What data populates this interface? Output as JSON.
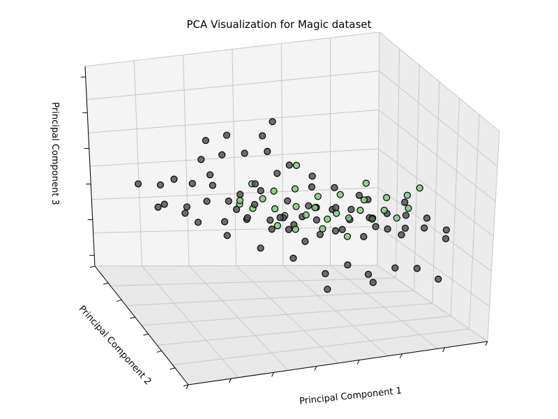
{
  "chart_data": {
    "type": "scatter",
    "title": "PCA Visualization for Magic dataset",
    "xlabel": "Principal Component 1",
    "ylabel": "Principal Component 2",
    "zlabel": "Principal Component 3",
    "projection": "3d",
    "grid": true,
    "legend": "none",
    "xlim": [
      -6,
      6
    ],
    "ylim": [
      -6,
      6
    ],
    "zlim": [
      -6,
      6
    ],
    "series": [
      {
        "color": "#555555",
        "edgecolor": "#000000",
        "points": [
          [
            -4.2,
            3.1,
            0.5
          ],
          [
            -3.8,
            2.6,
            1.1
          ],
          [
            -3.5,
            1.9,
            -0.2
          ],
          [
            -3.1,
            2.4,
            0.9
          ],
          [
            -2.8,
            1.5,
            0.3
          ],
          [
            -2.5,
            2.0,
            1.6
          ],
          [
            -2.3,
            0.8,
            -0.6
          ],
          [
            -2.0,
            1.2,
            0.4
          ],
          [
            -1.8,
            0.4,
            1.2
          ],
          [
            -1.5,
            1.7,
            -0.4
          ],
          [
            -1.3,
            0.1,
            0.7
          ],
          [
            -1.0,
            0.9,
            1.5
          ],
          [
            -0.8,
            -0.3,
            -0.1
          ],
          [
            -0.6,
            1.4,
            0.8
          ],
          [
            -0.4,
            -0.7,
            0.2
          ],
          [
            -0.2,
            0.6,
            2.2
          ],
          [
            0.0,
            -0.2,
            -0.8
          ],
          [
            0.3,
            0.8,
            0.4
          ],
          [
            0.5,
            -1.1,
            1.0
          ],
          [
            0.7,
            0.2,
            -0.3
          ],
          [
            1.0,
            -0.6,
            0.6
          ],
          [
            1.2,
            0.5,
            1.3
          ],
          [
            1.5,
            -1.4,
            -0.5
          ],
          [
            1.8,
            -0.2,
            0.2
          ],
          [
            2.0,
            -1.8,
            0.9
          ],
          [
            2.3,
            -0.8,
            -0.2
          ],
          [
            2.6,
            -2.2,
            0.5
          ],
          [
            2.9,
            -1.2,
            1.1
          ],
          [
            3.2,
            -2.6,
            -0.1
          ],
          [
            3.5,
            -1.7,
            0.4
          ],
          [
            3.8,
            -3.0,
            0.8
          ],
          [
            4.1,
            -2.1,
            -0.4
          ],
          [
            4.4,
            -3.4,
            0.1
          ],
          [
            -3.9,
            3.5,
            -0.9
          ],
          [
            -3.2,
            3.0,
            -1.2
          ],
          [
            -2.6,
            2.8,
            2.1
          ],
          [
            -1.9,
            2.3,
            2.6
          ],
          [
            -1.2,
            1.6,
            3.0
          ],
          [
            -0.5,
            0.9,
            3.4
          ],
          [
            0.2,
            0.3,
            2.8
          ],
          [
            0.9,
            -0.4,
            2.4
          ],
          [
            1.6,
            -1.0,
            1.9
          ],
          [
            2.4,
            -1.6,
            1.6
          ],
          [
            -0.9,
            2.2,
            -1.3
          ],
          [
            -0.1,
            1.5,
            -1.6
          ],
          [
            0.6,
            0.9,
            -1.1
          ],
          [
            1.4,
            0.1,
            -1.4
          ],
          [
            2.1,
            -0.5,
            -0.9
          ],
          [
            2.8,
            -1.0,
            -1.2
          ],
          [
            3.4,
            -0.7,
            -0.8
          ],
          [
            4.2,
            -1.4,
            -1.1
          ],
          [
            4.8,
            -2.6,
            0.3
          ],
          [
            5.2,
            -3.6,
            -0.6
          ],
          [
            5.0,
            -4.2,
            0.2
          ],
          [
            3.0,
            -4.0,
            -1.8
          ],
          [
            2.2,
            -3.2,
            -2.4
          ],
          [
            1.5,
            -2.8,
            -1.9
          ],
          [
            0.8,
            -2.2,
            -2.6
          ],
          [
            -0.3,
            -1.6,
            -1.8
          ],
          [
            -1.4,
            -0.9,
            -1.4
          ],
          [
            -2.4,
            0.2,
            -1.1
          ],
          [
            -3.3,
            1.1,
            -0.7
          ],
          [
            -4.6,
            2.2,
            -0.3
          ],
          [
            -4.9,
            3.8,
            0.2
          ],
          [
            0.4,
            -3.6,
            -2.8
          ],
          [
            1.9,
            -4.6,
            -2.2
          ],
          [
            3.6,
            -4.8,
            -1.6
          ],
          [
            4.6,
            -4.4,
            -2.6
          ],
          [
            -0.6,
            1.2,
            4.2
          ],
          [
            -1.6,
            2.6,
            3.6
          ],
          [
            0.1,
            2.0,
            4.6
          ],
          [
            -2.2,
            3.4,
            2.9
          ],
          [
            1.1,
            1.0,
            -2.2
          ],
          [
            -1.7,
            -0.2,
            0.1
          ],
          [
            0.9,
            -0.9,
            0.0
          ],
          [
            2.5,
            -2.8,
            0.7
          ],
          [
            3.9,
            -2.6,
            1.4
          ],
          [
            -2.9,
            0.5,
            1.8
          ],
          [
            -0.7,
            -1.2,
            0.5
          ],
          [
            1.3,
            -2.0,
            1.2
          ]
        ]
      },
      {
        "color": "#7fc97f",
        "edgecolor": "#000000",
        "points": [
          [
            -1.6,
            1.0,
            0.5
          ],
          [
            -1.2,
            0.6,
            0.2
          ],
          [
            -0.9,
            0.3,
            0.9
          ],
          [
            -0.5,
            0.0,
            0.4
          ],
          [
            -0.2,
            -0.3,
            0.1
          ],
          [
            0.2,
            -0.5,
            0.7
          ],
          [
            0.5,
            -0.8,
            0.3
          ],
          [
            0.8,
            -1.0,
            0.8
          ],
          [
            1.2,
            -1.3,
            0.2
          ],
          [
            1.5,
            -1.5,
            0.6
          ],
          [
            1.9,
            -1.8,
            0.4
          ],
          [
            2.3,
            -2.0,
            0.9
          ],
          [
            2.7,
            -2.3,
            0.5
          ],
          [
            3.1,
            -2.5,
            1.0
          ],
          [
            3.5,
            -2.8,
            0.6
          ],
          [
            3.9,
            -3.0,
            1.2
          ],
          [
            -1.0,
            1.3,
            1.3
          ],
          [
            -0.3,
            0.7,
            1.1
          ],
          [
            0.4,
            0.2,
            1.4
          ],
          [
            1.1,
            -0.5,
            1.2
          ],
          [
            1.8,
            -1.1,
            1.5
          ],
          [
            2.6,
            -1.6,
            1.3
          ],
          [
            3.3,
            -2.2,
            1.6
          ],
          [
            4.0,
            -2.6,
            1.8
          ],
          [
            0.0,
            -1.0,
            -0.4
          ],
          [
            0.9,
            -1.6,
            -0.2
          ],
          [
            1.7,
            -2.2,
            -0.5
          ],
          [
            -0.6,
            -0.6,
            -0.3
          ],
          [
            0.6,
            0.6,
            2.6
          ],
          [
            -1.3,
            1.9,
            -0.2
          ],
          [
            2.9,
            -1.0,
            2.0
          ],
          [
            4.4,
            -2.9,
            2.3
          ]
        ]
      }
    ]
  }
}
